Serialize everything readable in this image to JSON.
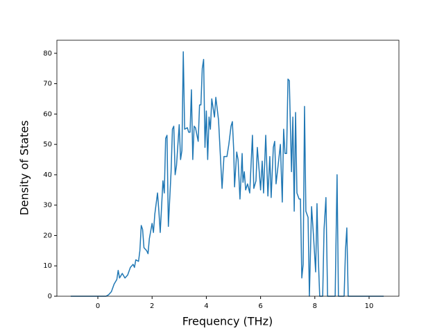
{
  "chart_data": {
    "type": "line",
    "xlabel": "Frequency (THz)",
    "ylabel": "Density of States",
    "x": [
      -1,
      0.3,
      0.4,
      0.5,
      0.6,
      0.7,
      0.75,
      0.8,
      0.9,
      1.0,
      1.1,
      1.2,
      1.3,
      1.35,
      1.4,
      1.5,
      1.55,
      1.6,
      1.65,
      1.7,
      1.8,
      1.85,
      1.9,
      2.0,
      2.05,
      2.1,
      2.2,
      2.25,
      2.3,
      2.4,
      2.45,
      2.5,
      2.55,
      2.6,
      2.7,
      2.75,
      2.8,
      2.85,
      2.9,
      3.0,
      3.05,
      3.1,
      3.15,
      3.2,
      3.3,
      3.35,
      3.4,
      3.45,
      3.5,
      3.55,
      3.6,
      3.7,
      3.75,
      3.8,
      3.85,
      3.9,
      3.95,
      4.0,
      4.05,
      4.1,
      4.15,
      4.2,
      4.3,
      4.35,
      4.45,
      4.58,
      4.65,
      4.76,
      4.83,
      4.91,
      4.96,
      5.01,
      5.04,
      5.12,
      5.17,
      5.24,
      5.32,
      5.35,
      5.4,
      5.45,
      5.52,
      5.6,
      5.7,
      5.75,
      5.83,
      5.88,
      5.96,
      6.0,
      6.06,
      6.11,
      6.19,
      6.27,
      6.34,
      6.39,
      6.47,
      6.52,
      6.57,
      6.67,
      6.73,
      6.8,
      6.85,
      6.9,
      6.96,
      7.01,
      7.06,
      7.14,
      7.19,
      7.24,
      7.29,
      7.34,
      7.42,
      7.47,
      7.52,
      7.57,
      7.62,
      7.67,
      7.75,
      7.8,
      7.88,
      7.95,
      8.03,
      8.08,
      8.13,
      8.18,
      8.29,
      8.34,
      8.41,
      8.47,
      8.75,
      8.82,
      8.87,
      9.08,
      9.13,
      9.18,
      9.23,
      10.54
    ],
    "series": [
      {
        "color": "#1f77b4",
        "values": [
          0,
          0,
          0.5,
          1.5,
          4,
          5.5,
          8.5,
          6,
          7.5,
          6,
          7,
          9.5,
          10.5,
          9.5,
          12,
          11.5,
          15,
          23.3,
          22,
          16,
          15,
          14,
          19,
          24,
          21,
          27,
          34,
          28,
          21,
          38,
          34,
          52,
          53,
          23,
          41,
          55,
          56,
          40,
          43,
          56.5,
          45,
          48,
          80.5,
          55,
          55.5,
          54,
          54,
          68,
          45,
          56,
          55.5,
          51,
          63,
          63,
          75,
          78,
          49,
          61,
          45,
          59,
          55,
          65,
          59,
          65.5,
          58,
          35.5,
          46,
          46,
          50,
          56,
          57.5,
          48,
          36,
          47.5,
          45,
          32,
          47,
          37.5,
          41,
          35,
          37,
          34,
          53,
          35.5,
          38,
          49,
          40,
          35,
          44.5,
          34,
          53,
          33,
          46,
          32.5,
          49,
          51,
          37,
          45,
          50,
          31,
          55,
          47,
          47,
          71.5,
          71,
          41,
          59,
          28,
          60.5,
          34,
          32,
          32,
          6,
          10.5,
          62.5,
          28,
          26,
          0,
          29.5,
          20,
          8,
          30.5,
          12,
          0,
          0,
          22,
          32.5,
          0,
          0,
          40,
          0,
          0,
          15,
          22.5,
          0,
          0
        ]
      }
    ],
    "xlim": [
      -1.51,
      11.1
    ],
    "ylim": [
      0,
      84.3
    ],
    "xticks": [
      0,
      2,
      4,
      6,
      8,
      10
    ],
    "yticks": [
      0,
      10,
      20,
      30,
      40,
      50,
      60,
      70,
      80
    ]
  }
}
